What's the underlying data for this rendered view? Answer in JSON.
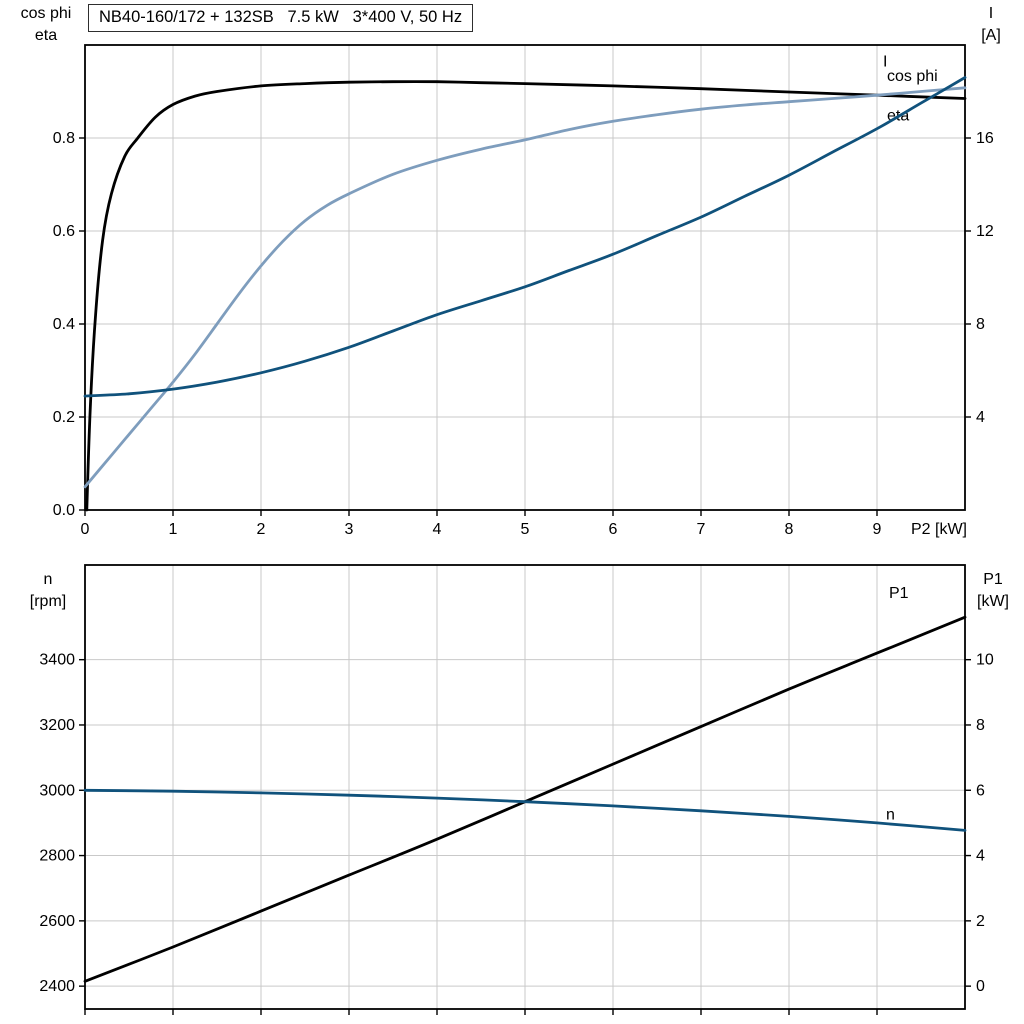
{
  "colors": {
    "grid": "#C9C9C9",
    "frame": "#000000",
    "background": "#FFFFFF"
  },
  "chart_data": [
    {
      "type": "line",
      "title": "NB40-160/172 + 132SB   7.5 kW   3*400 V, 50 Hz",
      "x_axis": {
        "label": "P2 [kW]",
        "min": 0,
        "max": 10,
        "ticks": [
          0,
          1,
          2,
          3,
          4,
          5,
          6,
          7,
          8,
          9
        ],
        "show_tick_labels": true
      },
      "left_axis": {
        "line1": "cos phi",
        "line2": "eta",
        "min": 0,
        "max": 1,
        "ticks": [
          0,
          0.2,
          0.4,
          0.6,
          0.8
        ],
        "decimals": 1
      },
      "right_axis": {
        "line1": "I",
        "line2": "[A]",
        "min": 0,
        "max": 20,
        "ticks": [
          4,
          8,
          12,
          16
        ],
        "decimals": 0
      },
      "series": [
        {
          "name": "eta",
          "axis": "left",
          "color": "#000000",
          "label": "eta",
          "label_dx": -78,
          "label_dy": 22,
          "x": [
            0.02,
            0.06,
            0.12,
            0.2,
            0.3,
            0.45,
            0.6,
            0.8,
            1.0,
            1.25,
            1.5,
            2.0,
            2.5,
            3.0,
            3.5,
            4.0,
            4.5,
            5.0,
            6.0,
            7.0,
            8.0,
            9.0,
            10.0
          ],
          "y": [
            0.0,
            0.22,
            0.42,
            0.58,
            0.68,
            0.76,
            0.8,
            0.845,
            0.872,
            0.89,
            0.9,
            0.912,
            0.917,
            0.92,
            0.921,
            0.921,
            0.919,
            0.917,
            0.912,
            0.906,
            0.899,
            0.892,
            0.885
          ]
        },
        {
          "name": "cos phi",
          "axis": "left",
          "color": "#7E9DBD",
          "label": "cos phi",
          "label_dx": -78,
          "label_dy": -7,
          "x": [
            0.0,
            0.2,
            0.4,
            0.6,
            0.8,
            1.0,
            1.25,
            1.5,
            1.75,
            2.0,
            2.25,
            2.5,
            2.75,
            3.0,
            3.5,
            4.0,
            4.5,
            5.0,
            5.5,
            6.0,
            6.5,
            7.0,
            7.5,
            8.0,
            8.5,
            9.0,
            9.5,
            10.0
          ],
          "y": [
            0.05,
            0.095,
            0.14,
            0.185,
            0.23,
            0.275,
            0.335,
            0.4,
            0.465,
            0.525,
            0.578,
            0.622,
            0.655,
            0.68,
            0.722,
            0.752,
            0.776,
            0.796,
            0.818,
            0.836,
            0.85,
            0.862,
            0.871,
            0.878,
            0.885,
            0.892,
            0.9,
            0.908
          ]
        },
        {
          "name": "I",
          "axis": "right",
          "color": "#10527C",
          "label": "I",
          "label_dx": -82,
          "label_dy": -11,
          "x": [
            0.0,
            0.5,
            1.0,
            1.5,
            2.0,
            2.5,
            3.0,
            3.5,
            4.0,
            4.5,
            5.0,
            5.5,
            6.0,
            6.5,
            7.0,
            7.5,
            8.0,
            8.5,
            9.0,
            9.5,
            10.0
          ],
          "y": [
            4.9,
            5.0,
            5.2,
            5.5,
            5.9,
            6.4,
            7.0,
            7.7,
            8.4,
            9.0,
            9.6,
            10.3,
            11.0,
            11.8,
            12.6,
            13.5,
            14.4,
            15.4,
            16.4,
            17.5,
            18.6
          ]
        }
      ]
    },
    {
      "type": "line",
      "title": "",
      "x_axis": {
        "label": "",
        "min": 0,
        "max": 10,
        "ticks": [
          0,
          1,
          2,
          3,
          4,
          5,
          6,
          7,
          8,
          9
        ],
        "show_tick_labels": false
      },
      "left_axis": {
        "line1": "n",
        "line2": "[rpm]",
        "min": 2330,
        "max": 3690,
        "ticks": [
          2400,
          2600,
          2800,
          3000,
          3200,
          3400
        ],
        "decimals": 0
      },
      "right_axis": {
        "line1": "P1",
        "line2": "[kW]",
        "min": -0.7,
        "max": 12.9,
        "ticks": [
          0,
          2,
          4,
          6,
          8,
          10
        ],
        "decimals": 0
      },
      "series": [
        {
          "name": "P1",
          "axis": "right",
          "color": "#000000",
          "label": "P1",
          "label_dx": -76,
          "label_dy": -19,
          "x": [
            0,
            1,
            2,
            3,
            4,
            5,
            6,
            7,
            8,
            9,
            10
          ],
          "y": [
            0.15,
            1.2,
            2.3,
            3.4,
            4.5,
            5.65,
            6.8,
            7.95,
            9.1,
            10.2,
            11.3
          ]
        },
        {
          "name": "n",
          "axis": "left",
          "color": "#10527C",
          "label": "n",
          "label_dx": -79,
          "label_dy": -11,
          "x": [
            0,
            1,
            2,
            3,
            4,
            5,
            6,
            7,
            8,
            9,
            10
          ],
          "y": [
            3000,
            2997,
            2992,
            2985,
            2976,
            2965,
            2952,
            2937,
            2920,
            2900,
            2877
          ]
        }
      ]
    }
  ]
}
